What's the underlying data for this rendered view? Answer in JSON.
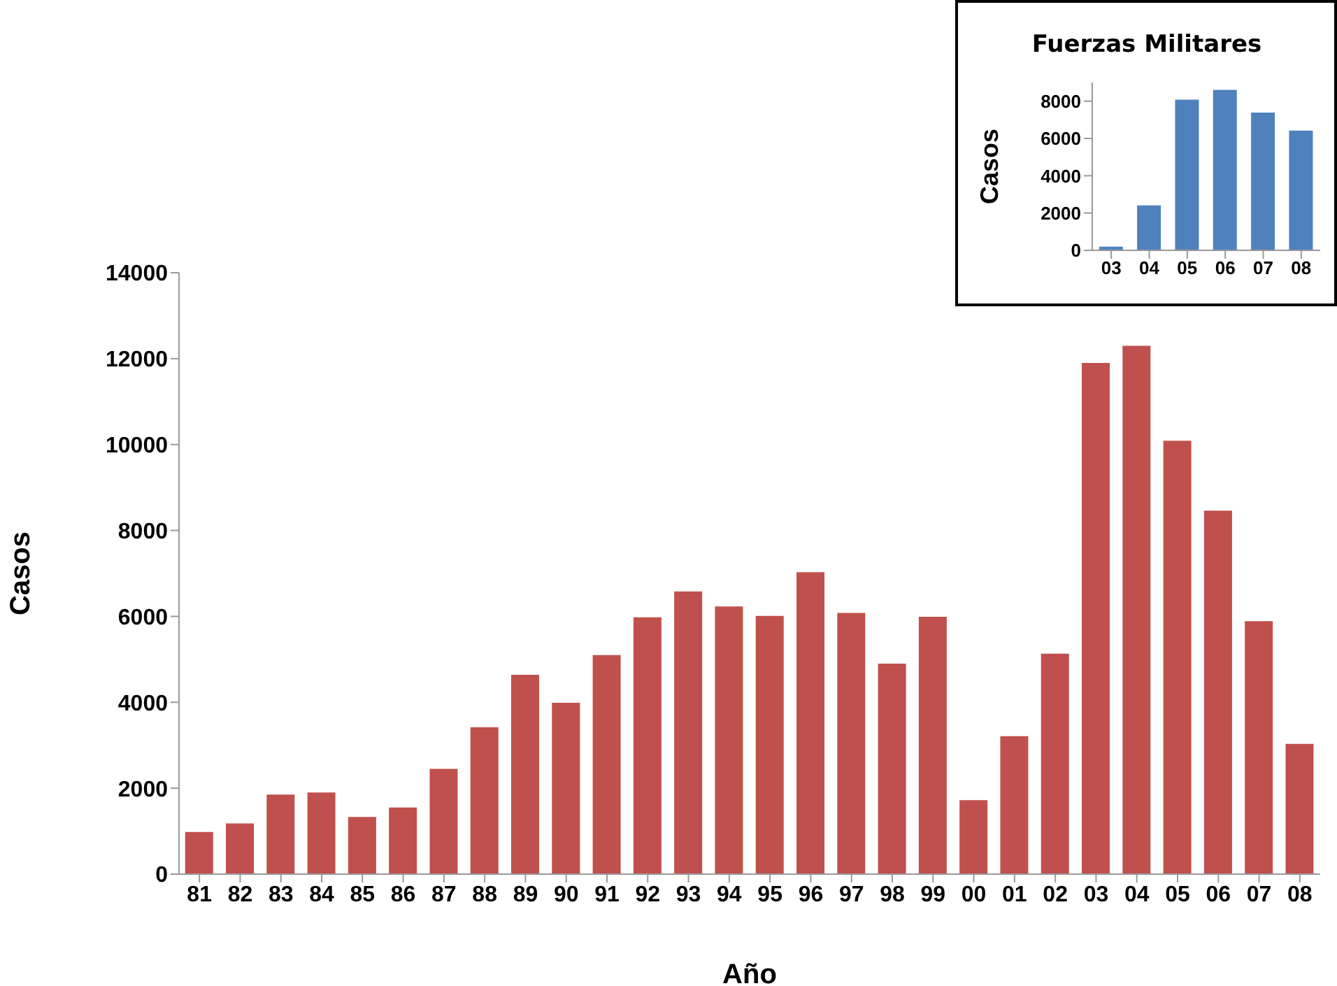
{
  "chart_data": [
    {
      "type": "bar",
      "xlabel": "Año",
      "ylabel": "Casos",
      "categories": [
        "81",
        "82",
        "83",
        "84",
        "85",
        "86",
        "87",
        "88",
        "89",
        "90",
        "91",
        "92",
        "93",
        "94",
        "95",
        "96",
        "97",
        "98",
        "99",
        "00",
        "01",
        "02",
        "03",
        "04",
        "05",
        "06",
        "07",
        "08"
      ],
      "values": [
        980,
        1180,
        1850,
        1900,
        1330,
        1550,
        2450,
        3420,
        4640,
        3990,
        5100,
        5980,
        6580,
        6230,
        6010,
        7030,
        6080,
        4900,
        5990,
        1720,
        3210,
        5130,
        11900,
        12300,
        10090,
        8460,
        5890,
        3030
      ],
      "color": "#c0504d",
      "ylim": [
        0,
        14000
      ],
      "yticks": [
        0,
        2000,
        4000,
        6000,
        8000,
        10000,
        12000,
        14000
      ]
    },
    {
      "type": "bar",
      "title": "Fuerzas Militares",
      "ylabel": "Casos",
      "categories": [
        "03",
        "04",
        "05",
        "06",
        "07",
        "08"
      ],
      "values": [
        200,
        2410,
        8080,
        8610,
        7390,
        6420
      ],
      "color": "#4f81bd",
      "ylim": [
        0,
        9000
      ],
      "yticks": [
        0,
        2000,
        4000,
        6000,
        8000
      ]
    }
  ]
}
